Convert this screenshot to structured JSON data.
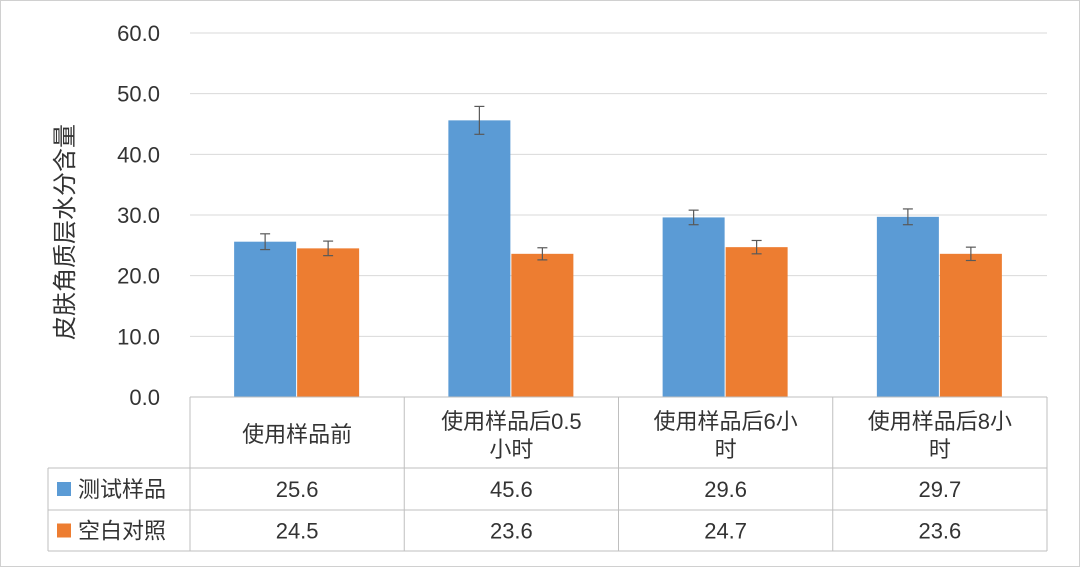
{
  "chart_data": {
    "type": "bar",
    "ylabel": "皮肤角质层水分含量",
    "ylim": [
      0,
      60
    ],
    "yticks": [
      "0.0",
      "10.0",
      "20.0",
      "30.0",
      "40.0",
      "50.0",
      "60.0"
    ],
    "grid": true,
    "categories": [
      [
        "使用样品前"
      ],
      [
        "使用样品后0.5",
        "小时"
      ],
      [
        "使用样品后6小",
        "时"
      ],
      [
        "使用样品后8小",
        "时"
      ]
    ],
    "series": [
      {
        "name": "测试样品",
        "color": "#5B9BD5",
        "values": [
          25.6,
          45.6,
          29.6,
          29.7
        ],
        "labels": [
          "25.6",
          "45.6",
          "29.6",
          "29.7"
        ],
        "error": [
          1.3,
          2.3,
          1.2,
          1.3
        ]
      },
      {
        "name": "空白对照",
        "color": "#ED7D31",
        "values": [
          24.5,
          23.6,
          24.7,
          23.6
        ],
        "labels": [
          "24.5",
          "23.6",
          "24.7",
          "23.6"
        ],
        "error": [
          1.2,
          1.0,
          1.1,
          1.1
        ]
      }
    ],
    "data_table": true
  }
}
